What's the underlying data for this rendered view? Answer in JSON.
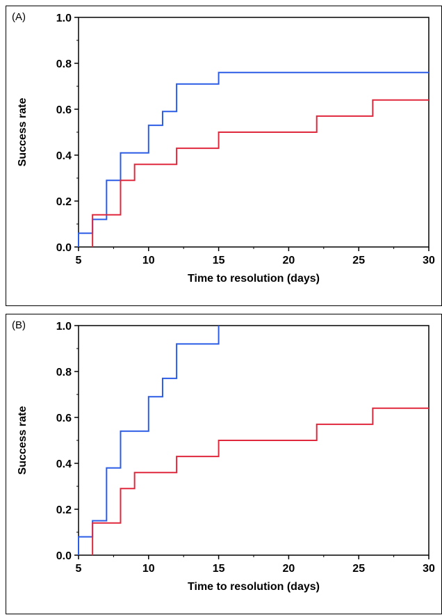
{
  "chart_data": [
    {
      "type": "line",
      "step": true,
      "panel_label": "(A)",
      "xlabel": "Time to resolution (days)",
      "ylabel": "Success rate",
      "xlim": [
        5,
        30
      ],
      "ylim": [
        0,
        1
      ],
      "xticks": [
        "5",
        "10",
        "15",
        "20",
        "25",
        "30"
      ],
      "yticks": [
        "0.0",
        "0.2",
        "0.4",
        "0.6",
        "0.8",
        "1.0"
      ],
      "colors": {
        "blue": "#2b5ce6",
        "red": "#e0283c"
      },
      "series": [
        {
          "color_key": "blue",
          "x": [
            5,
            6,
            7,
            8,
            10,
            11,
            12,
            15,
            30
          ],
          "y": [
            0.06,
            0.12,
            0.29,
            0.41,
            0.53,
            0.59,
            0.71,
            0.76,
            0.76
          ]
        },
        {
          "color_key": "red",
          "x": [
            6,
            8,
            9,
            12,
            15,
            22,
            26,
            30
          ],
          "y": [
            0.14,
            0.29,
            0.36,
            0.43,
            0.5,
            0.57,
            0.64,
            0.64
          ]
        }
      ]
    },
    {
      "type": "line",
      "step": true,
      "panel_label": "(B)",
      "xlabel": "Time to resolution (days)",
      "ylabel": "Success rate",
      "xlim": [
        5,
        30
      ],
      "ylim": [
        0,
        1
      ],
      "xticks": [
        "5",
        "10",
        "15",
        "20",
        "25",
        "30"
      ],
      "yticks": [
        "0.0",
        "0.2",
        "0.4",
        "0.6",
        "0.8",
        "1.0"
      ],
      "colors": {
        "blue": "#2b5ce6",
        "red": "#e0283c"
      },
      "series": [
        {
          "color_key": "blue",
          "x": [
            5,
            6,
            7,
            8,
            10,
            11,
            12,
            15
          ],
          "y": [
            0.08,
            0.15,
            0.38,
            0.54,
            0.69,
            0.77,
            0.92,
            1.0
          ]
        },
        {
          "color_key": "red",
          "x": [
            6,
            8,
            9,
            12,
            15,
            22,
            26,
            30
          ],
          "y": [
            0.14,
            0.29,
            0.36,
            0.43,
            0.5,
            0.57,
            0.64,
            0.64
          ]
        }
      ]
    }
  ]
}
